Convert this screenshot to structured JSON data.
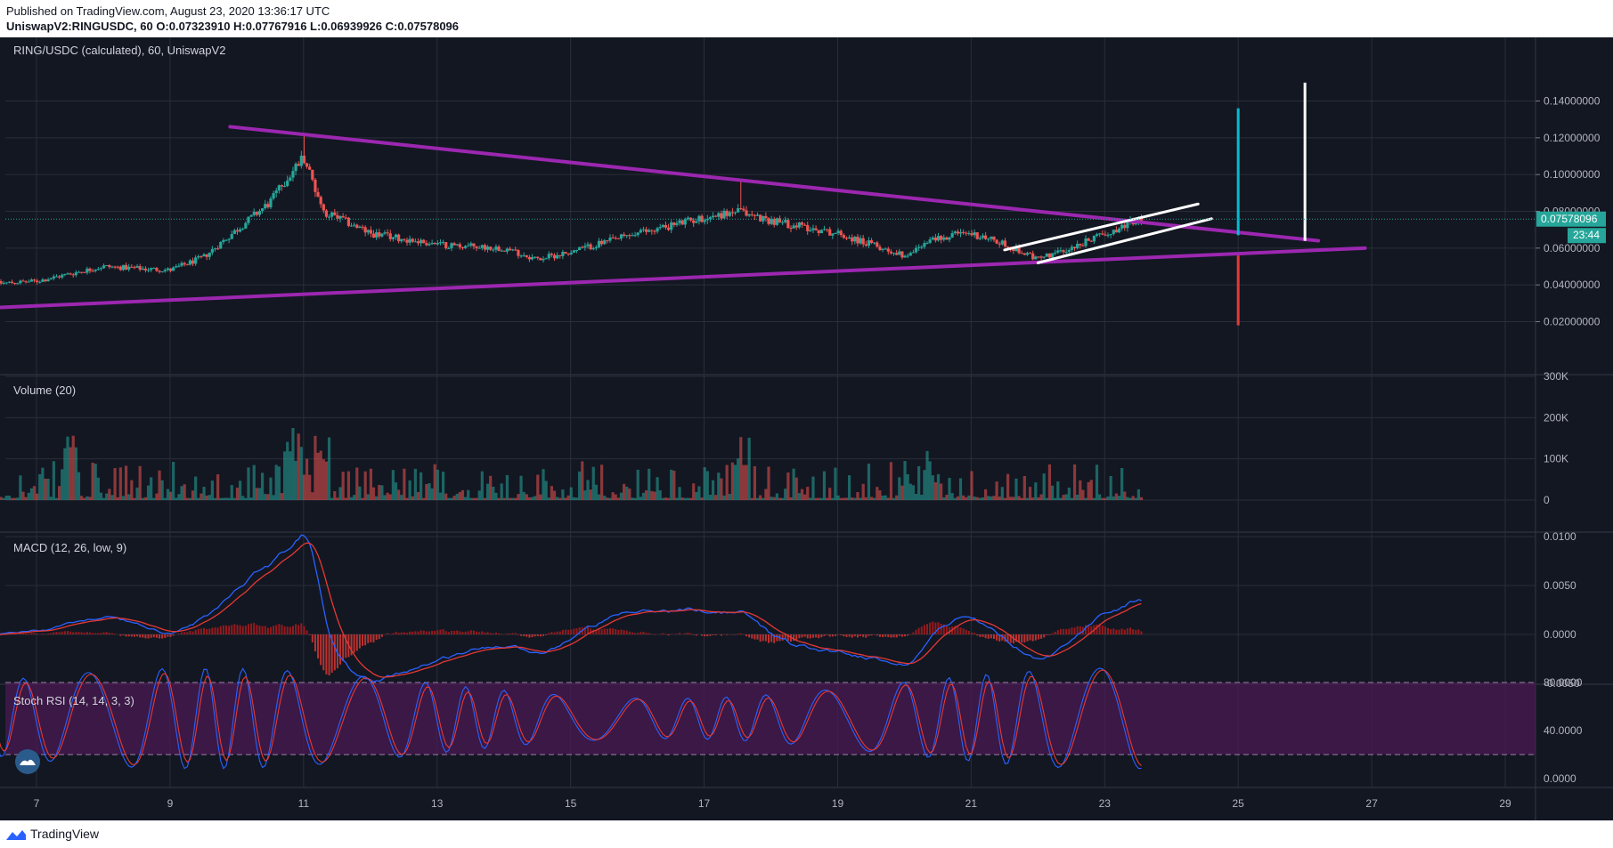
{
  "header": {
    "published": "Published on TradingView.com, August 23, 2020 13:36:17 UTC",
    "ohlc": "UniswapV2:RINGUSDC, 60  O:0.07323910  H:0.07767916  L:0.06939926  C:0.07578096"
  },
  "chart": {
    "title": "RING/USDC (calculated), 60, UniswapV2",
    "price_ticks": [
      "0.14000000",
      "0.12000000",
      "0.10000000",
      "0.08000000",
      "0.06000000",
      "0.04000000",
      "0.02000000"
    ],
    "price_ticks_values": [
      0.14,
      0.12,
      0.1,
      0.08,
      0.06,
      0.04,
      0.02
    ],
    "last_price_label": "0.07578096",
    "last_price": 0.07578096,
    "countdown": "23:44",
    "x_ticks": [
      "7",
      "9",
      "11",
      "13",
      "15",
      "17",
      "19",
      "21",
      "23",
      "25",
      "27",
      "29"
    ]
  },
  "panes": {
    "volume": {
      "title": "Volume (20)",
      "ticks": [
        "300K",
        "200K",
        "100K",
        "0"
      ]
    },
    "macd": {
      "title": "MACD (12, 26, low, 9)",
      "ticks": [
        "0.0100",
        "0.0050",
        "0.0000",
        "-0.0050"
      ]
    },
    "stoch": {
      "title": "Stoch RSI (14, 14, 3, 3)",
      "ticks": [
        "80.0000",
        "40.0000",
        "0.0000"
      ]
    }
  },
  "footer": {
    "brand": "TradingView"
  },
  "colors": {
    "background": "#131722",
    "grid": "#2a2e39",
    "up": "#26a69a",
    "down": "#ef5350",
    "trendline": "#9c27b0",
    "channel": "#ffffff",
    "target_up": "#00bcd4",
    "target_down": "#e53935",
    "stoch_band": "#4a1a52"
  },
  "chart_data": {
    "type": "candlestick",
    "title": "RING/USDC (calculated), 60, UniswapV2",
    "x_range": [
      "Aug 6",
      "Aug 29"
    ],
    "y_range": [
      0.018,
      0.15
    ],
    "price_path_key_points": [
      {
        "day": 6.0,
        "price": 0.04
      },
      {
        "day": 7.0,
        "price": 0.042
      },
      {
        "day": 8.0,
        "price": 0.05
      },
      {
        "day": 9.0,
        "price": 0.048
      },
      {
        "day": 9.5,
        "price": 0.055
      },
      {
        "day": 10.0,
        "price": 0.07
      },
      {
        "day": 10.5,
        "price": 0.085
      },
      {
        "day": 11.0,
        "price": 0.11
      },
      {
        "day": 11.3,
        "price": 0.08
      },
      {
        "day": 12.0,
        "price": 0.068
      },
      {
        "day": 13.0,
        "price": 0.062
      },
      {
        "day": 14.0,
        "price": 0.06
      },
      {
        "day": 14.5,
        "price": 0.054
      },
      {
        "day": 15.0,
        "price": 0.058
      },
      {
        "day": 16.0,
        "price": 0.068
      },
      {
        "day": 16.8,
        "price": 0.075
      },
      {
        "day": 17.5,
        "price": 0.08
      },
      {
        "day": 18.0,
        "price": 0.075
      },
      {
        "day": 19.0,
        "price": 0.068
      },
      {
        "day": 19.5,
        "price": 0.062
      },
      {
        "day": 20.0,
        "price": 0.056
      },
      {
        "day": 20.5,
        "price": 0.066
      },
      {
        "day": 21.0,
        "price": 0.068
      },
      {
        "day": 21.5,
        "price": 0.062
      },
      {
        "day": 22.0,
        "price": 0.054
      },
      {
        "day": 22.5,
        "price": 0.06
      },
      {
        "day": 23.0,
        "price": 0.068
      },
      {
        "day": 23.55,
        "price": 0.0758
      }
    ],
    "spikes": [
      {
        "day": 11.0,
        "high": 0.122
      },
      {
        "day": 17.55,
        "high": 0.097
      }
    ],
    "drawings": {
      "descending_trendline": [
        {
          "day": 9.9,
          "price": 0.126
        },
        {
          "day": 26.2,
          "price": 0.064
        }
      ],
      "ascending_trendline": [
        {
          "day": 6.0,
          "price": 0.027
        },
        {
          "day": 26.9,
          "price": 0.06
        }
      ],
      "channel_upper": [
        {
          "day": 21.5,
          "price": 0.059
        },
        {
          "day": 24.4,
          "price": 0.084
        }
      ],
      "channel_lower": [
        {
          "day": 22.0,
          "price": 0.052
        },
        {
          "day": 24.6,
          "price": 0.076
        }
      ],
      "target_up": {
        "day": 25.0,
        "from": 0.067,
        "to": 0.136
      },
      "target_down": {
        "day": 25.0,
        "from": 0.056,
        "to": 0.018
      },
      "target_white": {
        "day": 26.0,
        "from": 0.064,
        "to": 0.15
      }
    },
    "volume": {
      "ylim": [
        0,
        300000
      ]
    },
    "macd": {
      "ylim": [
        -0.005,
        0.01
      ]
    },
    "stoch_rsi": {
      "ylim": [
        0,
        100
      ],
      "bands": [
        20,
        80
      ]
    }
  }
}
